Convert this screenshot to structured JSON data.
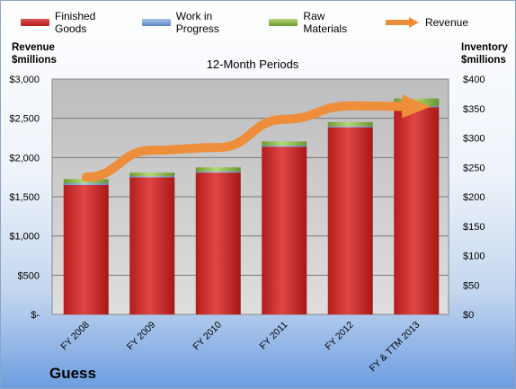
{
  "legend": {
    "finished_goods": "Finished Goods",
    "work_in_progress": "Work in Progress",
    "raw_materials": "Raw Materials",
    "revenue": "Revenue"
  },
  "left_axis_title": [
    "Revenue",
    "$millions"
  ],
  "right_axis_title": [
    "Inventory",
    "$millions"
  ],
  "company": "Guess",
  "colors": {
    "finished_goods": "#cc2a2a",
    "work_in_progress": "#7d9ed3",
    "raw_materials": "#8fb84a",
    "revenue": "#ee8e3a",
    "plot_bg": "#c8c8c8"
  },
  "chart_data": {
    "type": "bar",
    "title": "12-Month Periods",
    "categories": [
      "FY 2008",
      "FY 2009",
      "FY 2010",
      "FY 2011",
      "FY 2012",
      "FY & TTM 2013"
    ],
    "series": [
      {
        "name": "Finished Goods",
        "axis": "right",
        "stacked": true,
        "values": [
          220,
          233,
          241,
          285,
          318,
          352
        ]
      },
      {
        "name": "Work in Progress",
        "axis": "right",
        "stacked": true,
        "values": [
          3,
          2,
          2,
          2,
          2,
          2
        ]
      },
      {
        "name": "Raw Materials",
        "axis": "right",
        "stacked": true,
        "values": [
          7,
          6,
          7,
          7,
          7,
          13
        ]
      },
      {
        "name": "Revenue",
        "axis": "left",
        "type": "line",
        "values": [
          1750,
          2093,
          2128,
          2488,
          2658,
          2650
        ]
      }
    ],
    "left_axis": {
      "ylim": [
        0,
        3000
      ],
      "ticks": [
        "$-",
        "$500",
        "$1,000",
        "$1,500",
        "$2,000",
        "$2,500",
        "$3,000"
      ]
    },
    "right_axis": {
      "ylim": [
        0,
        400
      ],
      "ticks": [
        "$0",
        "$50",
        "$100",
        "$150",
        "$200",
        "$250",
        "$300",
        "$350",
        "$400"
      ]
    },
    "grid": true,
    "legend_position": "top"
  }
}
